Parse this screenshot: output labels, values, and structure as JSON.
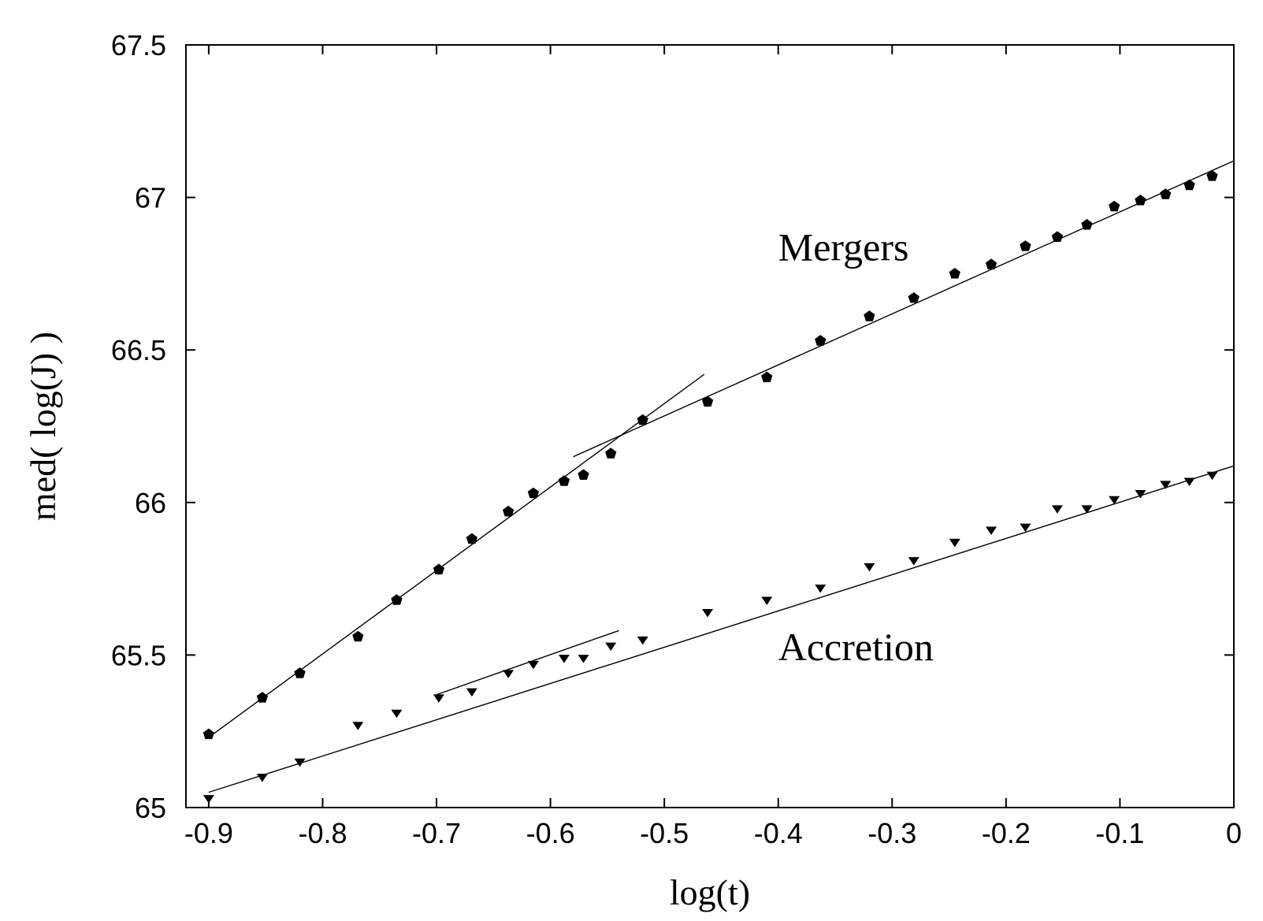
{
  "chart_data": {
    "type": "scatter",
    "title": "",
    "xlabel": "log(t)",
    "ylabel": "med( log(J) )",
    "xlim": [
      -0.92,
      0.0
    ],
    "ylim": [
      65.0,
      67.5
    ],
    "xticks": [
      "-0.9",
      "-0.8",
      "-0.7",
      "-0.6",
      "-0.5",
      "-0.4",
      "-0.3",
      "-0.2",
      "-0.1",
      "0"
    ],
    "yticks": [
      "65",
      "65.5",
      "66",
      "66.5",
      "67",
      "67.5"
    ],
    "grid": false,
    "annotations": [
      {
        "text": "Mergers",
        "x": -0.4,
        "y": 66.84
      },
      {
        "text": "Accretion",
        "x": -0.4,
        "y": 65.53
      }
    ],
    "series": [
      {
        "marker": "pentagon",
        "x": [
          -0.9,
          -0.853,
          -0.82,
          -0.769,
          -0.735,
          -0.698,
          -0.669,
          -0.637,
          -0.615,
          -0.588,
          -0.571,
          -0.547,
          -0.519,
          -0.462,
          -0.41,
          -0.363,
          -0.32,
          -0.281,
          -0.245,
          -0.213,
          -0.183,
          -0.155,
          -0.129,
          -0.105,
          -0.082,
          -0.06,
          -0.039,
          -0.019
        ],
        "y": [
          65.24,
          65.36,
          65.44,
          65.56,
          65.68,
          65.78,
          65.88,
          65.97,
          66.03,
          66.07,
          66.09,
          66.16,
          66.27,
          66.33,
          66.41,
          66.53,
          66.61,
          66.67,
          66.75,
          66.78,
          66.84,
          66.87,
          66.91,
          66.97,
          66.99,
          67.01,
          67.04,
          67.07
        ]
      },
      {
        "marker": "triangle-down",
        "x": [
          -0.9,
          -0.853,
          -0.82,
          -0.769,
          -0.735,
          -0.698,
          -0.669,
          -0.637,
          -0.615,
          -0.588,
          -0.571,
          -0.547,
          -0.519,
          -0.462,
          -0.41,
          -0.363,
          -0.32,
          -0.281,
          -0.245,
          -0.213,
          -0.183,
          -0.155,
          -0.129,
          -0.105,
          -0.082,
          -0.06,
          -0.039,
          -0.019
        ],
        "y": [
          65.03,
          65.1,
          65.15,
          65.27,
          65.31,
          65.36,
          65.38,
          65.44,
          65.47,
          65.49,
          65.49,
          65.53,
          65.55,
          65.64,
          65.68,
          65.72,
          65.79,
          65.81,
          65.87,
          65.91,
          65.92,
          65.98,
          65.98,
          66.01,
          66.03,
          66.06,
          66.07,
          66.09
        ]
      }
    ],
    "fit_lines": [
      {
        "x": [
          -0.9,
          -0.465
        ],
        "y": [
          65.23,
          66.42
        ]
      },
      {
        "x": [
          -0.58,
          0.0
        ],
        "y": [
          66.15,
          67.12
        ]
      },
      {
        "x": [
          -0.9,
          0.0
        ],
        "y": [
          65.05,
          66.12
        ]
      },
      {
        "x": [
          -0.7,
          -0.54
        ],
        "y": [
          65.37,
          65.58
        ]
      }
    ]
  }
}
